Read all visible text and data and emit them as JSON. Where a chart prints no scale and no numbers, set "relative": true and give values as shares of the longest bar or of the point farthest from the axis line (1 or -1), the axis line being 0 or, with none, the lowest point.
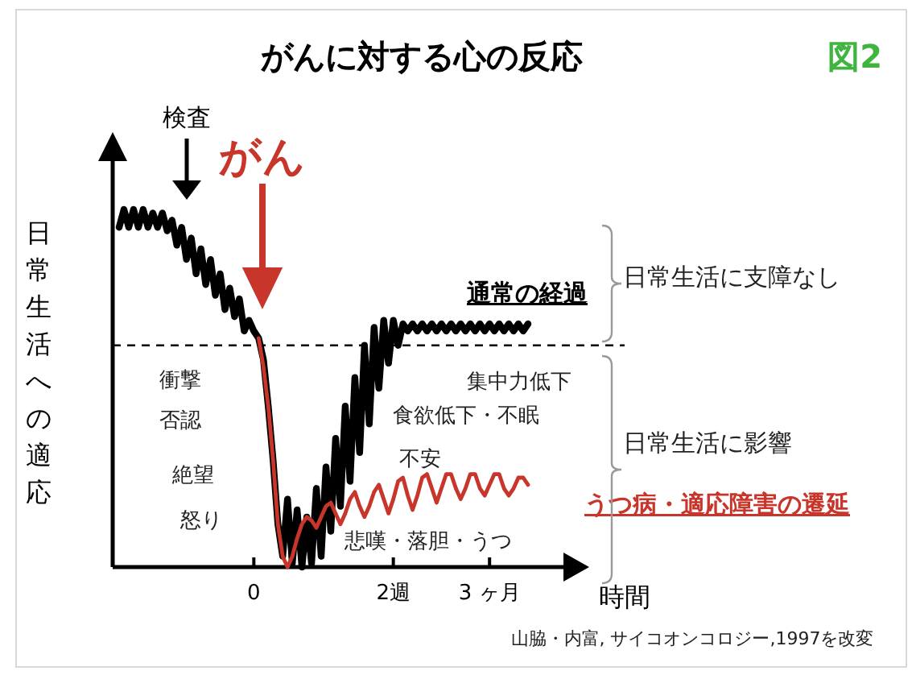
{
  "chart_data": {
    "type": "line",
    "title": "がんに対する心の反応",
    "xlabel": "時間",
    "ylabel": "日常生活への適応",
    "relative": true,
    "tick_labels": "x",
    "line_style": "solid",
    "marker": "none",
    "categories": [
      null,
      null,
      null,
      null,
      null,
      null,
      null,
      null,
      null,
      null,
      null,
      null,
      null,
      null,
      null,
      null,
      null,
      null,
      null,
      null,
      null,
      null,
      null,
      null,
      null,
      null,
      null,
      null,
      "0",
      null,
      null,
      null,
      null,
      null,
      null,
      null,
      null,
      null,
      null,
      null,
      null,
      null,
      null,
      null,
      null,
      null,
      null,
      null,
      null,
      null,
      null,
      null,
      null,
      null,
      null,
      null,
      null,
      "2週",
      null,
      null,
      null,
      null,
      null,
      null,
      null,
      null,
      null,
      null,
      null,
      null,
      null,
      null,
      null,
      null,
      null,
      null,
      null,
      "3 ヶ月",
      null,
      null,
      null,
      null,
      null,
      null,
      null,
      null
    ],
    "ref_lines": [
      {
        "axis": "y",
        "value": 0.62,
        "label": null,
        "line_style": "dashed",
        "color": "#000000"
      }
    ],
    "series": [
      {
        "name": "通常の経過",
        "color": "#000000",
        "values": [
          0.95,
          1.0,
          0.95,
          1.0,
          0.95,
          1.0,
          0.95,
          0.99,
          0.95,
          0.99,
          0.94,
          0.97,
          0.9,
          0.95,
          0.86,
          0.92,
          0.82,
          0.89,
          0.79,
          0.86,
          0.76,
          0.82,
          0.72,
          0.78,
          0.7,
          0.75,
          0.66,
          0.69,
          0.66,
          0.64,
          0.58,
          0.45,
          0.3,
          0.12,
          0.03,
          0.19,
          0.01,
          0.16,
          0,
          0.14,
          0.01,
          0.22,
          0.03,
          0.28,
          0.1,
          0.36,
          0.17,
          0.45,
          0.24,
          0.53,
          0.32,
          0.62,
          0.4,
          0.67,
          0.5,
          0.69,
          0.57,
          0.69,
          0.62,
          0.68,
          0.66,
          0.68,
          0.66,
          0.68,
          0.66,
          0.68,
          0.66,
          0.68,
          0.66,
          0.68,
          0.66,
          0.68,
          0.66,
          0.68,
          0.66,
          0.68,
          0.66,
          0.68,
          0.66,
          0.68,
          0.66,
          0.68,
          0.66,
          0.68,
          0.66,
          0.68
        ]
      },
      {
        "name": "うつ病・適応障害の遷延",
        "color": "#c8352a",
        "values": [
          null,
          null,
          null,
          null,
          null,
          null,
          null,
          null,
          null,
          null,
          null,
          null,
          null,
          null,
          null,
          null,
          null,
          null,
          null,
          null,
          null,
          null,
          null,
          null,
          null,
          null,
          null,
          null,
          null,
          0.64,
          0.56,
          0.45,
          0.3,
          0.12,
          0.03,
          0,
          0.03,
          0.08,
          0.12,
          0.14,
          0.13,
          0.11,
          0.14,
          0.17,
          0.18,
          0.15,
          0.12,
          0.15,
          0.19,
          0.21,
          0.17,
          0.14,
          0.17,
          0.21,
          0.23,
          0.19,
          0.15,
          0.19,
          0.24,
          0.25,
          0.2,
          0.16,
          0.2,
          0.25,
          0.26,
          0.22,
          0.18,
          0.22,
          0.26,
          0.26,
          0.22,
          0.19,
          0.22,
          0.26,
          0.26,
          0.22,
          0.2,
          0.23,
          0.26,
          0.26,
          0.22,
          0.2,
          0.22,
          0.25,
          0.25,
          0.23
        ]
      }
    ],
    "annotations": [
      "図2",
      "検査",
      "がん",
      "衝撃",
      "否認",
      "絶望",
      "怒り",
      "集中力低下",
      "食欲低下・不眠",
      "不安",
      "悲嘆・落胆・うつ",
      "日常生活に支障なし",
      "日常生活に影響",
      "山脇・内富, サイコオンコロジー,1997を改変"
    ]
  }
}
